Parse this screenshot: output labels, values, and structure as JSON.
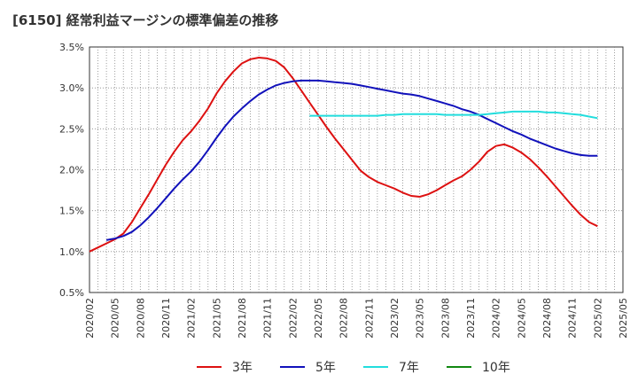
{
  "chart_data": {
    "type": "line",
    "title": "[6150]  経常利益マージンの標準偏差の推移",
    "xlabel": "",
    "ylabel": "",
    "x_ticks": [
      "2020/02",
      "2020/05",
      "2020/08",
      "2020/11",
      "2021/02",
      "2021/05",
      "2021/08",
      "2021/11",
      "2022/02",
      "2022/05",
      "2022/08",
      "2022/11",
      "2023/02",
      "2023/05",
      "2023/08",
      "2023/11",
      "2024/02",
      "2024/05",
      "2024/08",
      "2024/11",
      "2025/02",
      "2025/05"
    ],
    "y_ticks": [
      "0.5%",
      "1.0%",
      "1.5%",
      "2.0%",
      "2.5%",
      "3.0%",
      "3.5%"
    ],
    "ylim": [
      0.5,
      3.5
    ],
    "grid": true,
    "legend_position": "bottom",
    "series": [
      {
        "name": "3年",
        "color": "#dd1111",
        "x": [
          "2020/02",
          "2020/03",
          "2020/04",
          "2020/05",
          "2020/06",
          "2020/07",
          "2020/08",
          "2020/09",
          "2020/10",
          "2020/11",
          "2020/12",
          "2021/01",
          "2021/02",
          "2021/03",
          "2021/04",
          "2021/05",
          "2021/06",
          "2021/07",
          "2021/08",
          "2021/09",
          "2021/10",
          "2021/11",
          "2021/12",
          "2022/01",
          "2022/02",
          "2022/03",
          "2022/04",
          "2022/05",
          "2022/06",
          "2022/07",
          "2022/08",
          "2022/09",
          "2022/10",
          "2022/11",
          "2022/12",
          "2023/01",
          "2023/02",
          "2023/03",
          "2023/04",
          "2023/05",
          "2023/06",
          "2023/07",
          "2023/08",
          "2023/09",
          "2023/10",
          "2023/11",
          "2023/12",
          "2024/01",
          "2024/02",
          "2024/03",
          "2024/04",
          "2024/05",
          "2024/06",
          "2024/07",
          "2024/08",
          "2024/09",
          "2024/10",
          "2024/11",
          "2024/12",
          "2025/01",
          "2025/02"
        ],
        "values": [
          1.0,
          1.05,
          1.1,
          1.15,
          1.22,
          1.36,
          1.53,
          1.7,
          1.88,
          2.06,
          2.22,
          2.36,
          2.47,
          2.6,
          2.75,
          2.93,
          3.08,
          3.2,
          3.3,
          3.35,
          3.37,
          3.36,
          3.33,
          3.25,
          3.12,
          2.97,
          2.82,
          2.67,
          2.52,
          2.38,
          2.25,
          2.12,
          1.99,
          1.91,
          1.85,
          1.81,
          1.77,
          1.72,
          1.68,
          1.67,
          1.7,
          1.75,
          1.81,
          1.87,
          1.92,
          2.0,
          2.1,
          2.22,
          2.29,
          2.31,
          2.27,
          2.21,
          2.13,
          2.03,
          1.92,
          1.8,
          1.68,
          1.56,
          1.45,
          1.36,
          1.31
        ]
      },
      {
        "name": "5年",
        "color": "#1111bb",
        "x": [
          "2020/04",
          "2020/05",
          "2020/06",
          "2020/07",
          "2020/08",
          "2020/09",
          "2020/10",
          "2020/11",
          "2020/12",
          "2021/01",
          "2021/02",
          "2021/03",
          "2021/04",
          "2021/05",
          "2021/06",
          "2021/07",
          "2021/08",
          "2021/09",
          "2021/10",
          "2021/11",
          "2021/12",
          "2022/01",
          "2022/02",
          "2022/03",
          "2022/04",
          "2022/05",
          "2022/06",
          "2022/07",
          "2022/08",
          "2022/09",
          "2022/10",
          "2022/11",
          "2022/12",
          "2023/01",
          "2023/02",
          "2023/03",
          "2023/04",
          "2023/05",
          "2023/06",
          "2023/07",
          "2023/08",
          "2023/09",
          "2023/10",
          "2023/11",
          "2023/12",
          "2024/01",
          "2024/02",
          "2024/03",
          "2024/04",
          "2024/05",
          "2024/06",
          "2024/07",
          "2024/08",
          "2024/09",
          "2024/10",
          "2024/11",
          "2024/12",
          "2025/01",
          "2025/02"
        ],
        "values": [
          1.14,
          1.16,
          1.19,
          1.24,
          1.32,
          1.42,
          1.53,
          1.65,
          1.77,
          1.88,
          1.98,
          2.1,
          2.24,
          2.39,
          2.53,
          2.65,
          2.75,
          2.84,
          2.92,
          2.98,
          3.03,
          3.06,
          3.08,
          3.09,
          3.09,
          3.09,
          3.08,
          3.07,
          3.06,
          3.05,
          3.03,
          3.01,
          2.99,
          2.97,
          2.95,
          2.93,
          2.92,
          2.9,
          2.87,
          2.84,
          2.81,
          2.78,
          2.74,
          2.71,
          2.67,
          2.62,
          2.57,
          2.52,
          2.47,
          2.43,
          2.38,
          2.34,
          2.3,
          2.26,
          2.23,
          2.2,
          2.18,
          2.17,
          2.17
        ]
      },
      {
        "name": "7年",
        "color": "#22dddd",
        "x": [
          "2022/04",
          "2022/05",
          "2022/06",
          "2022/07",
          "2022/08",
          "2022/09",
          "2022/10",
          "2022/11",
          "2022/12",
          "2023/01",
          "2023/02",
          "2023/03",
          "2023/04",
          "2023/05",
          "2023/06",
          "2023/07",
          "2023/08",
          "2023/09",
          "2023/10",
          "2023/11",
          "2023/12",
          "2024/01",
          "2024/02",
          "2024/03",
          "2024/04",
          "2024/05",
          "2024/06",
          "2024/07",
          "2024/08",
          "2024/09",
          "2024/10",
          "2024/11",
          "2024/12",
          "2025/01",
          "2025/02"
        ],
        "values": [
          2.66,
          2.66,
          2.66,
          2.66,
          2.66,
          2.66,
          2.66,
          2.66,
          2.66,
          2.67,
          2.67,
          2.68,
          2.68,
          2.68,
          2.68,
          2.68,
          2.67,
          2.67,
          2.67,
          2.67,
          2.67,
          2.68,
          2.69,
          2.7,
          2.71,
          2.71,
          2.71,
          2.71,
          2.7,
          2.7,
          2.69,
          2.68,
          2.67,
          2.65,
          2.63
        ]
      },
      {
        "name": "10年",
        "color": "#118811",
        "x": [],
        "values": []
      }
    ]
  }
}
